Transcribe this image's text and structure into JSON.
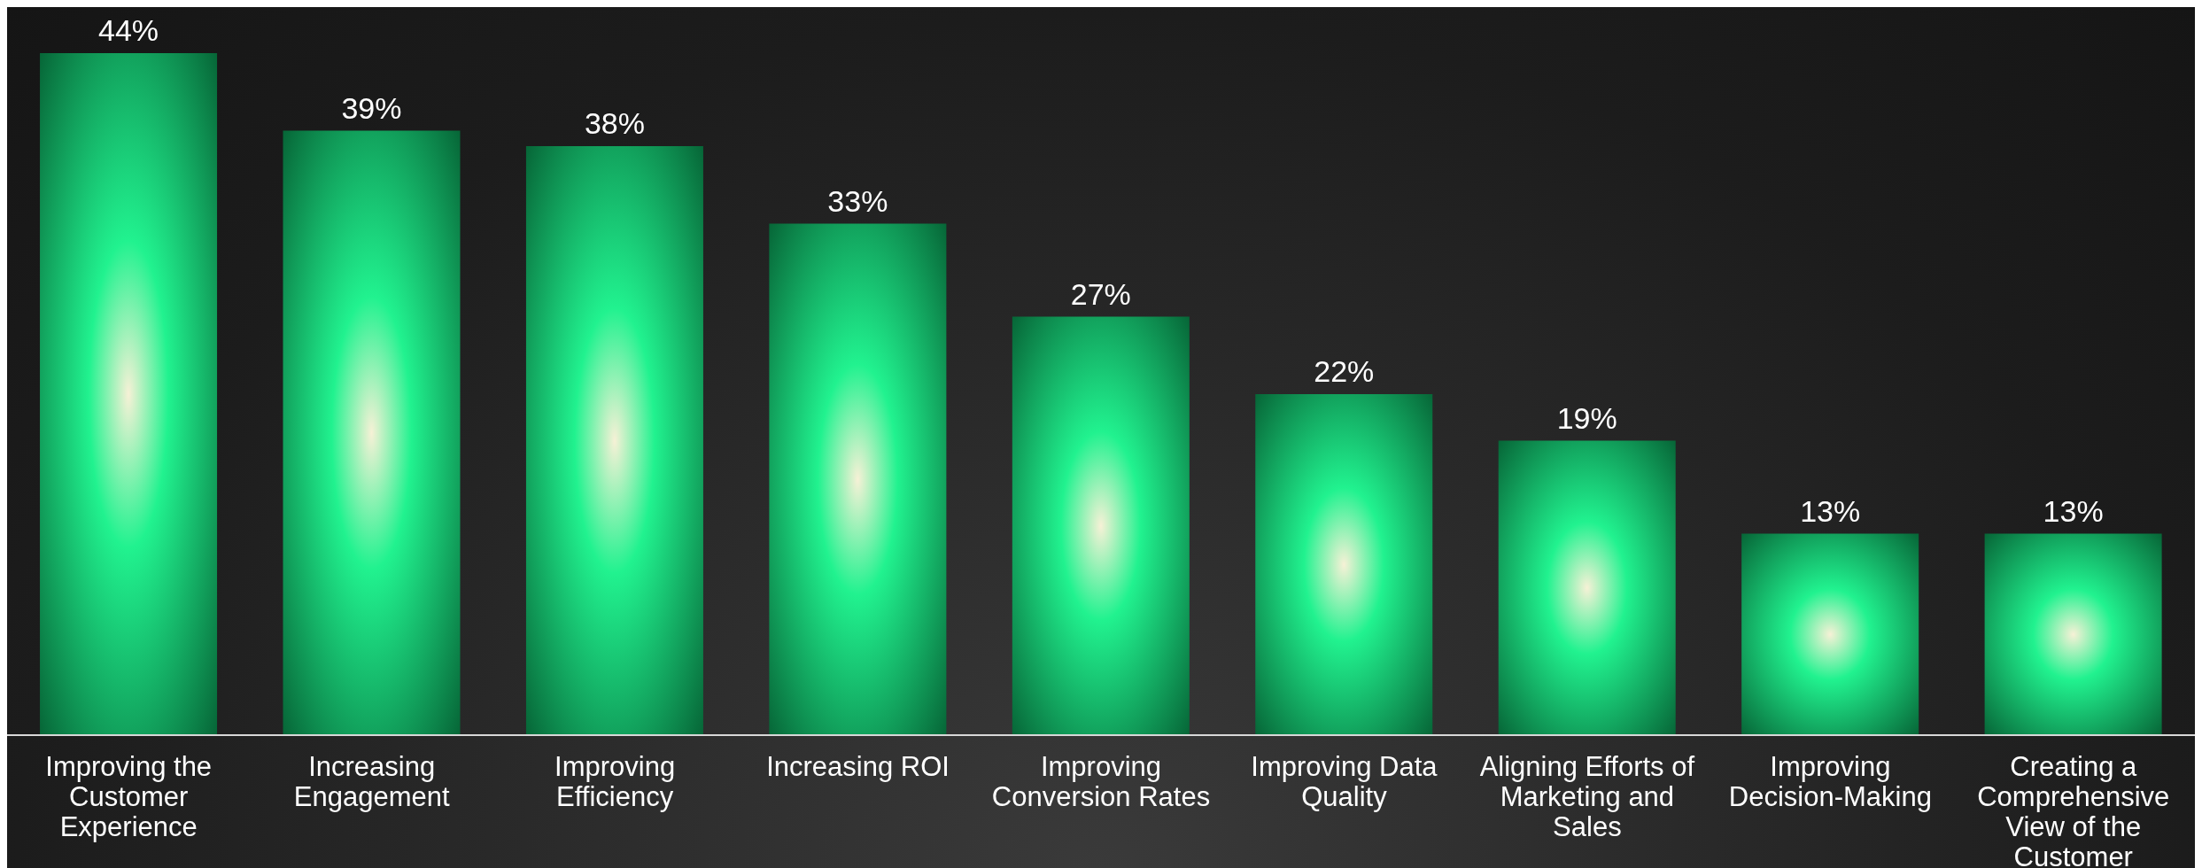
{
  "chart_data": {
    "type": "bar",
    "categories": [
      "Improving the Customer Experience",
      "Increasing Engagement",
      "Improving Efficiency",
      "Increasing ROI",
      "Improving Conversion Rates",
      "Improving Data Quality",
      "Aligning Efforts of Marketing and Sales",
      "Improving Decision-Making",
      "Creating a Comprehensive View of the Customer"
    ],
    "values": [
      44,
      39,
      38,
      33,
      27,
      22,
      19,
      13,
      13
    ],
    "value_labels": [
      "44%",
      "39%",
      "38%",
      "33%",
      "27%",
      "22%",
      "19%",
      "13%",
      "13%"
    ],
    "color": "#21f28f",
    "grid": false,
    "legend": false
  }
}
